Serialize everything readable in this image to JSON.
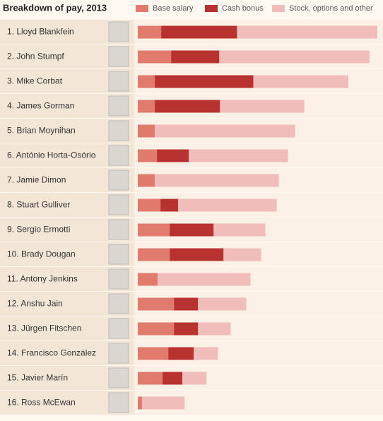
{
  "chart_data": {
    "type": "stacked-bar-horizontal",
    "title": "Breakdown of pay, 2013",
    "categories": [
      "1. Lloyd Blankfein",
      "2. John Stumpf",
      "3. Mike Corbat",
      "4. James Gorman",
      "5. Brian Moynihan",
      "6. António Horta-Osório",
      "7. Jamie Dimon",
      "8. Stuart Gulliver",
      "9. Sergio Ermotti",
      "10. Brady Dougan",
      "11. Antony Jenkins",
      "12. Anshu Jain",
      "13. Jürgen Fitschen",
      "14. Francisco González",
      "15. Javier Marín",
      "16. Ross McEwan"
    ],
    "series": [
      {
        "name": "Base salary",
        "color": "#e07b6e",
        "values": [
          33,
          47,
          24,
          24,
          24,
          27,
          24,
          32,
          45,
          45,
          28,
          51,
          51,
          43,
          35,
          6
        ]
      },
      {
        "name": "Cash bonus",
        "color": "#b8322f",
        "values": [
          107,
          68,
          139,
          92,
          0,
          45,
          0,
          25,
          62,
          76,
          0,
          34,
          34,
          36,
          28,
          0
        ]
      },
      {
        "name": "Stock, options and other",
        "color": "#f1bdbb",
        "values": [
          198,
          212,
          134,
          119,
          198,
          140,
          175,
          139,
          73,
          53,
          131,
          68,
          46,
          34,
          34,
          60
        ]
      }
    ]
  }
}
